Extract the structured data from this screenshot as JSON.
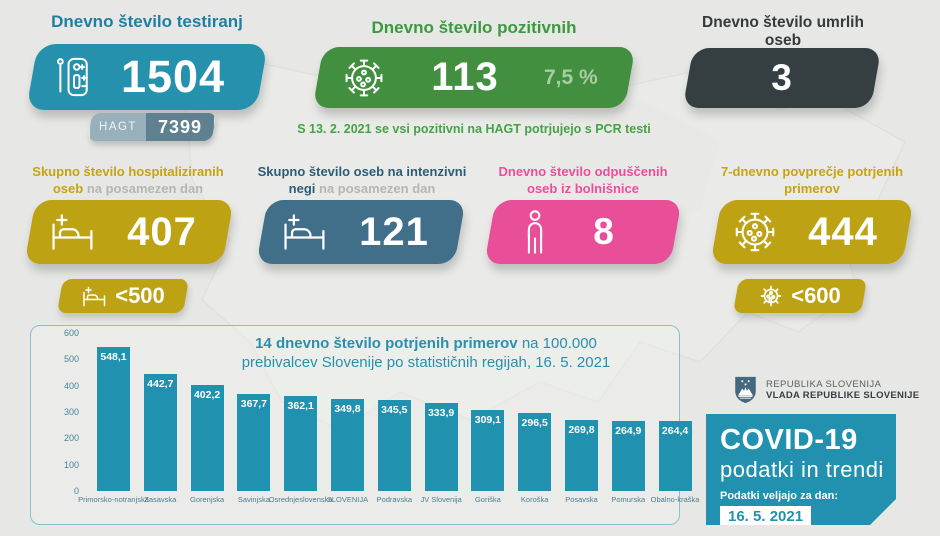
{
  "top": {
    "tests": {
      "title": "Dnevno število testiranj",
      "value": "1504",
      "hagt_label": "HAGT",
      "hagt_value": "7399"
    },
    "positive": {
      "title": "Dnevno število pozitivnih",
      "value": "113",
      "percent": "7,5 %",
      "note": "S 13. 2. 2021 se vsi pozitivni na HAGT potrjujejo s PCR testi"
    },
    "deaths": {
      "title": "Dnevno število umrlih oseb",
      "value": "3"
    }
  },
  "middle": {
    "hospitalized": {
      "title_bold": "Skupno število hospitaliziranih oseb",
      "title_rest": " na posamezen dan",
      "value": "407",
      "threshold": "<500"
    },
    "icu": {
      "title_bold": "Skupno število oseb na intenzivni negi",
      "title_rest": " na posamezen dan",
      "value": "121"
    },
    "discharged": {
      "title": "Dnevno število odpuščenih oseb iz bolnišnice",
      "value": "8"
    },
    "week_avg": {
      "title": "7-dnevno povprečje potrjenih primerov",
      "value": "444",
      "threshold": "<600"
    }
  },
  "chart_data": {
    "type": "bar",
    "title_bold": "14 dnevno število potrjenih primerov",
    "title_rest": " na 100.000",
    "title_line2": "prebivalcev Slovenije po statističnih regijah, 16. 5. 2021",
    "categories": [
      "Primorsko-notranjska",
      "Zasavska",
      "Gorenjska",
      "Savinjska",
      "Osrednjeslovenska",
      "SLOVENIJA",
      "Podravska",
      "JV Slovenija",
      "Goriška",
      "Koroška",
      "Posavska",
      "Pomurska",
      "Obalno-kraška"
    ],
    "values": [
      548.1,
      442.7,
      402.2,
      367.7,
      362.1,
      349.8,
      345.5,
      333.9,
      309.1,
      296.5,
      269.8,
      264.9,
      264.4
    ],
    "ylim": [
      0,
      600
    ],
    "yticks": [
      0,
      100,
      200,
      300,
      400,
      500,
      600
    ],
    "grid": false,
    "legend": false,
    "bar_color": "#2091ae"
  },
  "footer": {
    "gov_line1": "REPUBLIKA SLOVENIJA",
    "gov_line2": "VLADA REPUBLIKE SLOVENIJE",
    "covid_title": "COVID-19",
    "covid_subtitle": "podatki in trendi",
    "date_label": "Podatki veljajo za dan:",
    "date_value": "16. 5. 2021"
  },
  "colors": {
    "teal": "#2591ad",
    "green": "#42903f",
    "dark": "#353f41",
    "gold": "#bda213",
    "steel": "#416f89",
    "pink": "#e94e99",
    "bar": "#2091ae",
    "covid_card": "#2291af"
  }
}
